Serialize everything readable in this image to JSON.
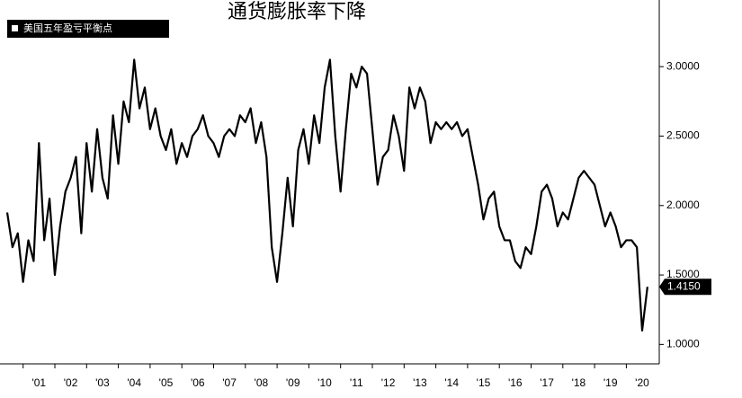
{
  "chart_data": {
    "type": "line",
    "title": "通货膨胀率下降",
    "series": [
      {
        "name": "美国五年盈亏平衡点",
        "color": "#000000",
        "values": [
          1.95,
          1.7,
          1.8,
          1.45,
          1.75,
          1.6,
          2.45,
          1.75,
          2.05,
          1.5,
          1.85,
          2.1,
          2.2,
          2.35,
          1.8,
          2.45,
          2.1,
          2.55,
          2.2,
          2.05,
          2.65,
          2.3,
          2.75,
          2.6,
          3.05,
          2.7,
          2.85,
          2.55,
          2.7,
          2.5,
          2.4,
          2.55,
          2.3,
          2.45,
          2.35,
          2.5,
          2.55,
          2.65,
          2.5,
          2.45,
          2.35,
          2.5,
          2.55,
          2.5,
          2.65,
          2.6,
          2.7,
          2.45,
          2.6,
          2.35,
          1.7,
          1.45,
          1.8,
          2.2,
          1.85,
          2.4,
          2.55,
          2.3,
          2.65,
          2.45,
          2.85,
          3.05,
          2.5,
          2.1,
          2.55,
          2.95,
          2.85,
          3.0,
          2.95,
          2.55,
          2.15,
          2.35,
          2.4,
          2.65,
          2.5,
          2.25,
          2.85,
          2.7,
          2.85,
          2.75,
          2.45,
          2.6,
          2.55,
          2.6,
          2.55,
          2.6,
          2.5,
          2.55,
          2.35,
          2.15,
          1.9,
          2.05,
          2.1,
          1.85,
          1.75,
          1.75,
          1.6,
          1.55,
          1.7,
          1.65,
          1.85,
          2.1,
          2.15,
          2.05,
          1.85,
          1.95,
          1.9,
          2.05,
          2.2,
          2.25,
          2.2,
          2.15,
          2.0,
          1.85,
          1.95,
          1.85,
          1.7,
          1.75,
          1.75,
          1.7,
          1.1,
          1.415
        ]
      }
    ],
    "categories": [
      null,
      null,
      null,
      null,
      null,
      null,
      "'01",
      null,
      null,
      null,
      null,
      null,
      "'02",
      null,
      null,
      null,
      null,
      null,
      "'03",
      null,
      null,
      null,
      null,
      null,
      "'04",
      null,
      null,
      null,
      null,
      null,
      "'05",
      null,
      null,
      null,
      null,
      null,
      "'06",
      null,
      null,
      null,
      null,
      null,
      "'07",
      null,
      null,
      null,
      null,
      null,
      "'08",
      null,
      null,
      null,
      null,
      null,
      "'09",
      null,
      null,
      null,
      null,
      null,
      "'10",
      null,
      null,
      null,
      null,
      null,
      "'11",
      null,
      null,
      null,
      null,
      null,
      "'12",
      null,
      null,
      null,
      null,
      null,
      "'13",
      null,
      null,
      null,
      null,
      null,
      "'14",
      null,
      null,
      null,
      null,
      null,
      "'15",
      null,
      null,
      null,
      null,
      null,
      "'16",
      null,
      null,
      null,
      null,
      null,
      "'17",
      null,
      null,
      null,
      null,
      null,
      "'18",
      null,
      null,
      null,
      null,
      null,
      "'19",
      null,
      null,
      null,
      null,
      null,
      "'20",
      null
    ],
    "ylim": [
      0.86,
      3.48
    ],
    "yticks": [
      {
        "value": 1,
        "label": "1.0000"
      },
      {
        "value": 1.5,
        "label": "1.5000"
      },
      {
        "value": 2,
        "label": "2.0000"
      },
      {
        "value": 2.5,
        "label": "2.5000"
      },
      {
        "value": 3,
        "label": "3.0000"
      }
    ],
    "current_value": {
      "value": 1.415,
      "label": "1.4150"
    },
    "grid": false
  }
}
